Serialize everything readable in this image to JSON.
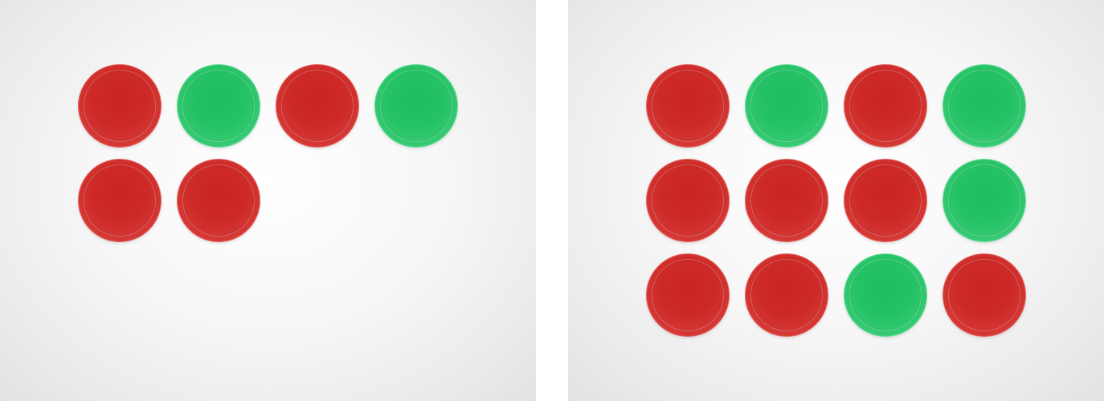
{
  "panels": [
    {
      "id": "left",
      "rows": [
        [
          "red",
          "green",
          "red",
          "green"
        ],
        [
          "red",
          "red"
        ]
      ]
    },
    {
      "id": "right",
      "rows": [
        [
          "red",
          "green",
          "red",
          "green"
        ],
        [
          "red",
          "red",
          "red",
          "green"
        ],
        [
          "red",
          "red",
          "green",
          "red"
        ]
      ]
    }
  ],
  "colors": {
    "red": "#cd2a27",
    "green": "#25c265",
    "background": "#f5f5f5"
  }
}
